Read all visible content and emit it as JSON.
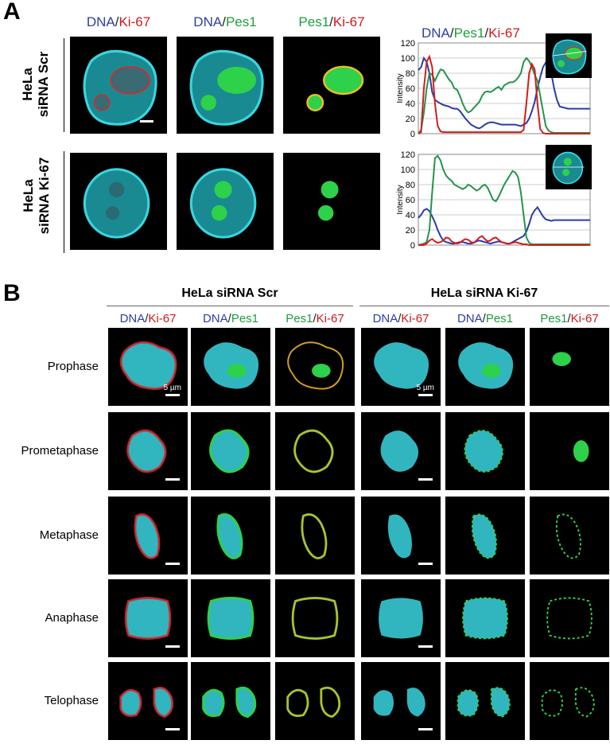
{
  "panel_a": {
    "letter": "A",
    "column_headers": [
      {
        "p1": "DNA",
        "s": "/",
        "p2": "Ki-67",
        "c1": "blue",
        "c2": "red"
      },
      {
        "p1": "DNA",
        "s": "/",
        "p2": "Pes1",
        "c1": "blue",
        "c2": "green"
      },
      {
        "p1": "Pes1",
        "s": "/",
        "p2": "Ki-67",
        "c1": "green",
        "c2": "red"
      }
    ],
    "plot_header": {
      "p1": "DNA",
      "s1": "/",
      "p2": "Pes1",
      "s2": "/",
      "p3": "Ki-67"
    },
    "row_labels": [
      {
        "line1": "HeLa",
        "line2": "siRNA Scr"
      },
      {
        "line1": "HeLa",
        "line2": "siRNA Ki-67"
      }
    ],
    "plot_ylabel": "Intensity",
    "plot_yticks": [
      "0",
      "20",
      "40",
      "60",
      "80",
      "100",
      "120"
    ]
  },
  "panel_b": {
    "letter": "B",
    "groups": [
      "HeLa siRNA Scr",
      "HeLa siRNA Ki-67"
    ],
    "column_headers": [
      {
        "p1": "DNA",
        "s": "/",
        "p2": "Ki-67",
        "c1": "blue",
        "c2": "red"
      },
      {
        "p1": "DNA",
        "s": "/",
        "p2": "Pes1",
        "c1": "blue",
        "c2": "green"
      },
      {
        "p1": "Pes1",
        "s": "/",
        "p2": "Ki-67",
        "c1": "green",
        "c2": "red"
      },
      {
        "p1": "DNA",
        "s": "/",
        "p2": "Ki-67",
        "c1": "blue",
        "c2": "red"
      },
      {
        "p1": "DNA",
        "s": "/",
        "p2": "Pes1",
        "c1": "blue",
        "c2": "green"
      },
      {
        "p1": "Pes1",
        "s": "/",
        "p2": "Ki-67",
        "c1": "green",
        "c2": "red"
      }
    ],
    "phases": [
      "Prophase",
      "Prometaphase",
      "Metaphase",
      "Anaphase",
      "Telophase"
    ],
    "scale_label": "5 µm"
  },
  "colors": {
    "dna": "#3ad6e0",
    "ki67": "#e0262a",
    "pes1": "#2ed14a",
    "blue_text": "#2c3ea8",
    "red_text": "#d01818",
    "green_text": "#1e9e3c",
    "plot_blue": "#2b3ca6",
    "plot_red": "#d41c1c",
    "plot_green": "#24944a"
  },
  "chart_data": [
    {
      "type": "line",
      "ylabel": "Intensity",
      "ylim": [
        0,
        120
      ],
      "grid": true,
      "x": [
        0,
        3,
        6,
        9,
        12,
        15,
        18,
        21,
        24,
        27,
        30,
        33,
        36,
        39,
        42,
        45,
        48,
        51,
        54,
        57,
        60,
        63,
        66,
        69,
        72,
        75,
        78,
        81,
        84,
        87,
        90,
        93,
        96,
        99,
        102,
        105,
        108,
        111,
        114,
        117,
        120,
        123,
        126,
        129,
        132,
        135,
        138,
        141,
        144,
        147,
        150,
        153,
        156,
        159,
        162,
        165,
        168,
        171,
        174,
        177,
        180,
        183,
        186
      ],
      "series": [
        {
          "color": "blue",
          "values": [
            84,
            88,
            100,
            95,
            80,
            55,
            45,
            42,
            40,
            38,
            37,
            36,
            34,
            33,
            33,
            30,
            25,
            20,
            16,
            12,
            10,
            8,
            7,
            9,
            12,
            14,
            15,
            15,
            14,
            13,
            12,
            12,
            12,
            12,
            12,
            12,
            11,
            10,
            12,
            14,
            20,
            30,
            42,
            60,
            75,
            88,
            94,
            90,
            80,
            60,
            45,
            36,
            35,
            34,
            33,
            33,
            33,
            33,
            33,
            33,
            33,
            33,
            33
          ]
        },
        {
          "color": "green",
          "values": [
            0,
            5,
            28,
            60,
            80,
            78,
            70,
            78,
            85,
            84,
            78,
            72,
            68,
            60,
            58,
            50,
            40,
            32,
            28,
            30,
            34,
            38,
            42,
            50,
            55,
            56,
            55,
            57,
            60,
            62,
            58,
            64,
            66,
            68,
            68,
            70,
            74,
            80,
            95,
            100,
            96,
            88,
            78,
            70,
            50,
            30,
            10,
            4,
            2,
            1,
            1,
            1,
            1,
            1,
            1,
            1,
            1,
            1,
            1,
            1,
            1,
            1,
            1
          ]
        },
        {
          "color": "red",
          "values": [
            0,
            2,
            60,
            95,
            102,
            88,
            40,
            10,
            3,
            2,
            2,
            2,
            2,
            2,
            2,
            2,
            2,
            2,
            2,
            2,
            2,
            2,
            2,
            2,
            2,
            2,
            2,
            2,
            2,
            2,
            2,
            2,
            2,
            2,
            2,
            2,
            2,
            2,
            5,
            40,
            80,
            92,
            85,
            40,
            6,
            1,
            0,
            0,
            0,
            0,
            0,
            0,
            0,
            0,
            0,
            0,
            0,
            0,
            0,
            0,
            0,
            0,
            0
          ]
        }
      ]
    },
    {
      "type": "line",
      "ylabel": "Intensity",
      "ylim": [
        0,
        120
      ],
      "grid": true,
      "x": [
        0,
        3,
        6,
        9,
        12,
        15,
        18,
        21,
        24,
        27,
        30,
        33,
        36,
        39,
        42,
        45,
        48,
        51,
        54,
        57,
        60,
        63,
        66,
        69,
        72,
        75,
        78,
        81,
        84,
        87,
        90,
        93,
        96,
        99,
        102,
        105,
        108,
        111,
        114,
        117,
        120,
        123,
        126,
        129,
        132,
        135,
        138,
        141,
        144,
        147,
        150,
        153,
        156,
        159,
        162,
        165,
        168,
        171,
        174,
        177,
        180,
        183,
        186
      ],
      "series": [
        {
          "color": "blue",
          "values": [
            36,
            40,
            46,
            48,
            45,
            38,
            30,
            20,
            12,
            6,
            4,
            3,
            2,
            2,
            3,
            4,
            4,
            3,
            2,
            2,
            3,
            5,
            6,
            5,
            4,
            3,
            2,
            3,
            4,
            5,
            4,
            3,
            2,
            2,
            4,
            6,
            8,
            10,
            12,
            18,
            28,
            40,
            46,
            50,
            44,
            38,
            34,
            33,
            32,
            33,
            33,
            33,
            33,
            33,
            33,
            33,
            33,
            33,
            33,
            33,
            33,
            33,
            33
          ]
        },
        {
          "color": "green",
          "values": [
            0,
            1,
            2,
            4,
            20,
            70,
            115,
            118,
            112,
            100,
            92,
            88,
            85,
            80,
            78,
            76,
            74,
            76,
            80,
            78,
            75,
            72,
            74,
            78,
            80,
            76,
            68,
            60,
            58,
            64,
            72,
            80,
            86,
            92,
            98,
            96,
            90,
            70,
            40,
            10,
            3,
            1,
            1,
            1,
            1,
            1,
            1,
            1,
            1,
            1,
            1,
            1,
            1,
            1,
            1,
            1,
            1,
            1,
            1,
            1,
            1,
            1,
            1
          ]
        },
        {
          "color": "red",
          "values": [
            0,
            0,
            0,
            2,
            6,
            8,
            5,
            3,
            4,
            6,
            10,
            9,
            5,
            3,
            2,
            3,
            6,
            8,
            7,
            4,
            3,
            6,
            10,
            12,
            8,
            5,
            6,
            9,
            10,
            7,
            4,
            3,
            2,
            2,
            3,
            4,
            3,
            2,
            1,
            1,
            0,
            0,
            0,
            0,
            0,
            0,
            0,
            0,
            0,
            0,
            0,
            0,
            0,
            0,
            0,
            0,
            0,
            0,
            0,
            0,
            0,
            0,
            0
          ]
        }
      ]
    }
  ]
}
